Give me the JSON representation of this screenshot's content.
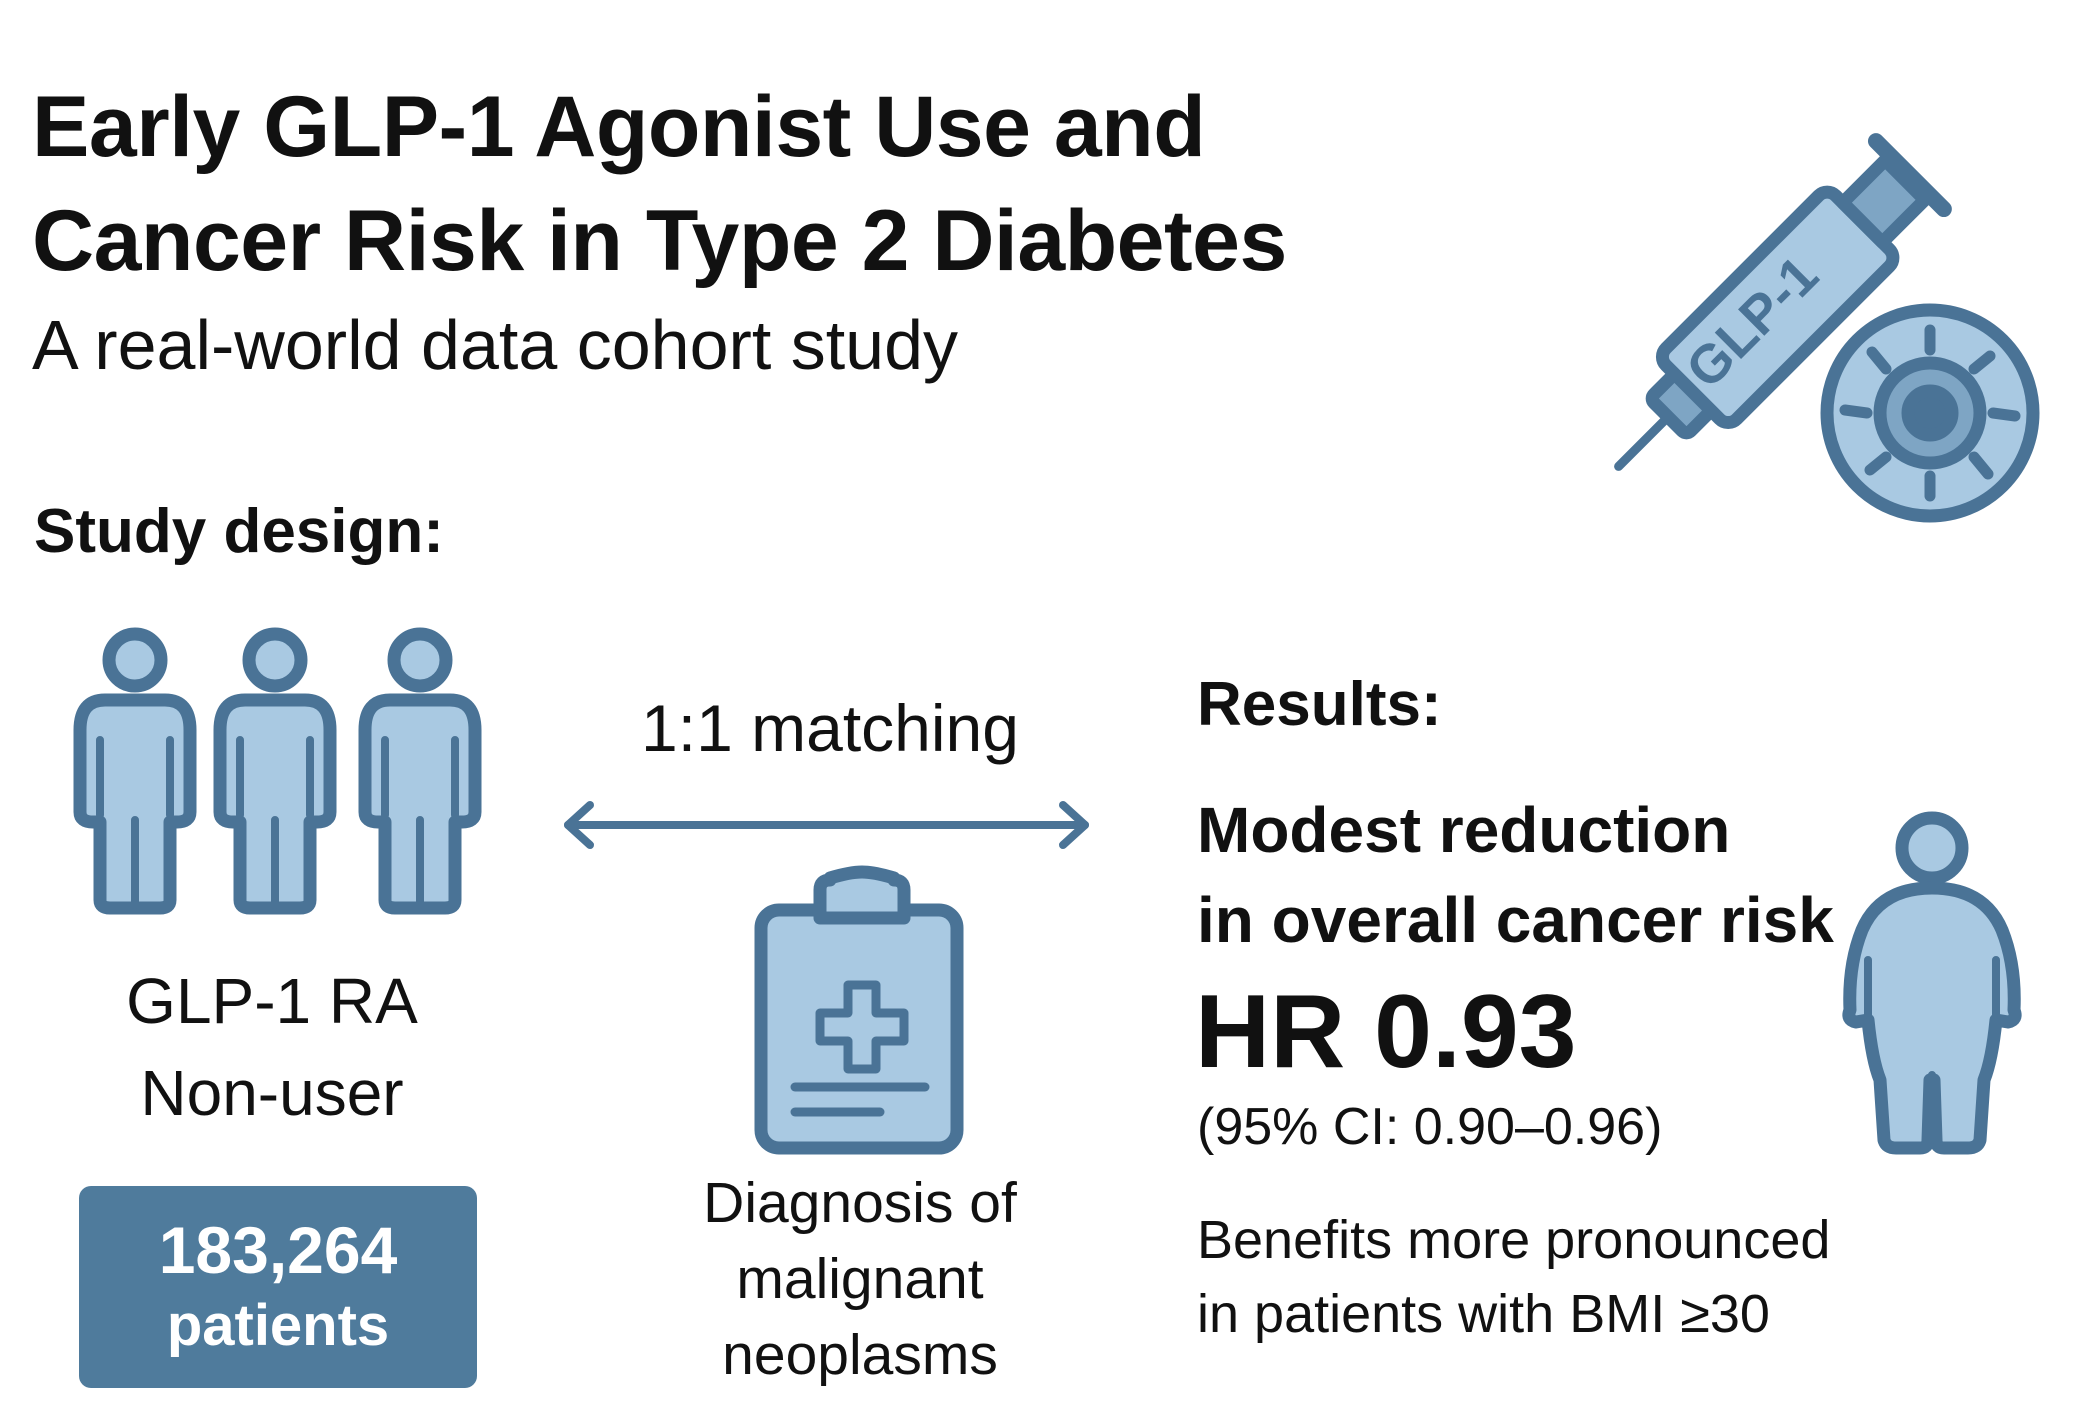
{
  "title": {
    "line1": "Early GLP-1 Agonist Use and",
    "line2": "Cancer Risk in Type 2 Diabetes"
  },
  "subtitle": "A real-world data cohort study",
  "study_design": {
    "heading": "Study design:",
    "group_line1": "GLP-1 RA",
    "group_line2": "Non-user",
    "patients_count": "183,264",
    "patients_label": "patients",
    "matching_label": "1:1 matching",
    "outcome_line1": "Diagnosis of",
    "outcome_line2": "malignant",
    "outcome_line3": "neoplasms"
  },
  "results": {
    "heading": "Results:",
    "summary_line1": "Modest reduction",
    "summary_line2": "in overall cancer risk",
    "hr": "HR 0.93",
    "ci": "(95% CI: 0.90–0.96)",
    "note_line1": "Benefits more pronounced",
    "note_line2": "in patients with BMI ≥30"
  },
  "icons": {
    "syringe_label": "GLP-1",
    "syringe": "syringe-icon",
    "cancer_cell": "cancer-cell-icon",
    "people": "people-icon",
    "clipboard": "clipboard-icon",
    "person_obese": "person-icon",
    "arrow": "double-arrow-icon"
  },
  "colors": {
    "stroke": "#4a7396",
    "fill": "#a9c9e2",
    "box": "#4f7b9c",
    "text": "#111111"
  }
}
